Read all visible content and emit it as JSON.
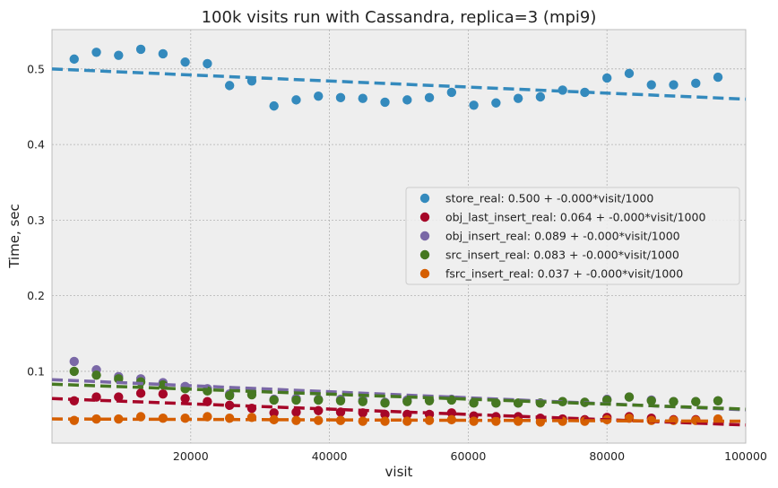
{
  "chart_data": {
    "type": "scatter",
    "title": "100k visits run with Cassandra, replica=3 (mpi9)",
    "xlabel": "visit",
    "ylabel": "Time, sec",
    "xlim": [
      0,
      100000
    ],
    "ylim": [
      0.005,
      0.552
    ],
    "xticks": [
      20000,
      40000,
      60000,
      80000,
      100000
    ],
    "yticks": [
      0.1,
      0.2,
      0.3,
      0.4,
      0.5
    ],
    "grid": true,
    "legend_position": "center-right",
    "x": [
      3200,
      6400,
      9600,
      12800,
      16000,
      19200,
      22400,
      25600,
      28800,
      32000,
      35200,
      38400,
      41600,
      44800,
      48000,
      51200,
      54400,
      57600,
      60800,
      64000,
      67200,
      70400,
      73600,
      76800,
      80000,
      83200,
      86400,
      89600,
      92800,
      96000
    ],
    "series": [
      {
        "name": "store_real: 0.500 + -0.000*visit/1000",
        "color": "#348ABD",
        "values": [
          0.513,
          0.522,
          0.518,
          0.526,
          0.52,
          0.509,
          0.507,
          0.478,
          0.484,
          0.451,
          0.459,
          0.464,
          0.462,
          0.461,
          0.456,
          0.459,
          0.462,
          0.469,
          0.452,
          0.455,
          0.461,
          0.463,
          0.472,
          0.469,
          0.488,
          0.494,
          0.479,
          0.479,
          0.481,
          0.489
        ],
        "fit": [
          0.5,
          -0.0004
        ]
      },
      {
        "name": "obj_last_insert_real: 0.064 + -0.000*visit/1000",
        "color": "#A60628",
        "values": [
          0.061,
          0.066,
          0.066,
          0.071,
          0.07,
          0.064,
          0.06,
          0.055,
          0.051,
          0.045,
          0.046,
          0.048,
          0.046,
          0.045,
          0.043,
          0.043,
          0.043,
          0.045,
          0.041,
          0.04,
          0.04,
          0.038,
          0.037,
          0.036,
          0.039,
          0.04,
          0.038,
          0.036,
          0.036,
          0.036
        ],
        "fit": [
          0.064,
          -0.00035
        ]
      },
      {
        "name": "obj_insert_real: 0.089 + -0.000*visit/1000",
        "color": "#7A68A6",
        "values": [
          0.113,
          0.102,
          0.093,
          0.09,
          0.085,
          0.08,
          0.077,
          0.07,
          0.072,
          0.063,
          0.064,
          0.063,
          0.063,
          0.062,
          0.059,
          0.062,
          0.062,
          0.063,
          0.059,
          0.058,
          0.058,
          0.058,
          0.06,
          0.059,
          0.063,
          0.066,
          0.062,
          0.06,
          0.06,
          0.061
        ],
        "fit": [
          0.089,
          -0.0004
        ]
      },
      {
        "name": "src_insert_real: 0.083 + -0.000*visit/1000",
        "color": "#467821",
        "values": [
          0.1,
          0.095,
          0.09,
          0.086,
          0.082,
          0.077,
          0.074,
          0.068,
          0.069,
          0.062,
          0.062,
          0.062,
          0.061,
          0.06,
          0.058,
          0.06,
          0.061,
          0.062,
          0.058,
          0.058,
          0.058,
          0.058,
          0.06,
          0.059,
          0.062,
          0.066,
          0.061,
          0.06,
          0.06,
          0.061
        ],
        "fit": [
          0.083,
          -0.00033
        ]
      },
      {
        "name": "fsrc_insert_real: 0.037 + -0.000*visit/1000",
        "color": "#D55E00",
        "values": [
          0.035,
          0.037,
          0.037,
          0.04,
          0.038,
          0.038,
          0.04,
          0.038,
          0.039,
          0.036,
          0.035,
          0.035,
          0.035,
          0.034,
          0.034,
          0.034,
          0.035,
          0.036,
          0.034,
          0.034,
          0.034,
          0.033,
          0.034,
          0.034,
          0.036,
          0.038,
          0.035,
          0.035,
          0.035,
          0.037
        ],
        "fit": [
          0.037,
          -3e-05
        ]
      }
    ]
  }
}
